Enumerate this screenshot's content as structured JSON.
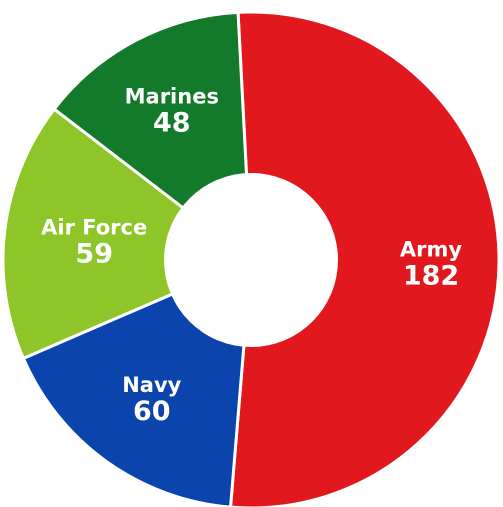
{
  "chart_data": {
    "type": "pie",
    "donut": true,
    "slices": [
      {
        "label": "Army",
        "value": 182,
        "color": "#e2181f"
      },
      {
        "label": "Navy",
        "value": 60,
        "color": "#0b44ad"
      },
      {
        "label": "Air Force",
        "value": 59,
        "color": "#8ec528"
      },
      {
        "label": "Marines",
        "value": 48,
        "color": "#137a2b"
      }
    ],
    "legend": "none",
    "labels_on_slices": true
  }
}
